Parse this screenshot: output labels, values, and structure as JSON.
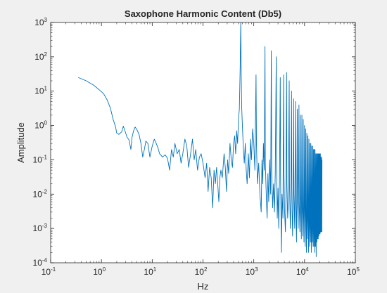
{
  "chart_data": {
    "type": "line",
    "title": "Saxophone Harmonic Content (Db5)",
    "xlabel": "Hz",
    "ylabel": "Amplitude",
    "xscale": "log",
    "yscale": "log",
    "xlim": [
      0.1,
      100000
    ],
    "ylim": [
      0.0001,
      1000
    ],
    "xticks": [
      {
        "value": 0.1,
        "base": "10",
        "exp": "-1"
      },
      {
        "value": 1,
        "base": "10",
        "exp": "0"
      },
      {
        "value": 10,
        "base": "10",
        "exp": "1"
      },
      {
        "value": 100,
        "base": "10",
        "exp": "2"
      },
      {
        "value": 1000,
        "base": "10",
        "exp": "3"
      },
      {
        "value": 10000,
        "base": "10",
        "exp": "4"
      },
      {
        "value": 100000,
        "base": "10",
        "exp": "5"
      }
    ],
    "yticks": [
      {
        "value": 0.0001,
        "base": "10",
        "exp": "-4"
      },
      {
        "value": 0.001,
        "base": "10",
        "exp": "-3"
      },
      {
        "value": 0.01,
        "base": "10",
        "exp": "-2"
      },
      {
        "value": 0.1,
        "base": "10",
        "exp": "-1"
      },
      {
        "value": 1,
        "base": "10",
        "exp": "0"
      },
      {
        "value": 10,
        "base": "10",
        "exp": "1"
      },
      {
        "value": 100,
        "base": "10",
        "exp": "2"
      },
      {
        "value": 1000,
        "base": "10",
        "exp": "3"
      }
    ],
    "grid": false,
    "series": [
      {
        "color": "#0072bd",
        "points": [
          [
            0.35,
            25
          ],
          [
            0.5,
            20
          ],
          [
            0.7,
            15
          ],
          [
            0.9,
            11
          ],
          [
            1.1,
            8.5
          ],
          [
            1.3,
            5.5
          ],
          [
            1.5,
            3.2
          ],
          [
            1.7,
            1.5
          ],
          [
            1.9,
            0.9
          ],
          [
            2.0,
            0.6
          ],
          [
            2.2,
            0.55
          ],
          [
            2.5,
            0.65
          ],
          [
            2.7,
            0.95
          ],
          [
            2.9,
            0.7
          ],
          [
            3.2,
            0.45
          ],
          [
            3.5,
            0.38
          ],
          [
            3.8,
            0.2
          ],
          [
            4.0,
            0.45
          ],
          [
            4.3,
            0.7
          ],
          [
            4.6,
            0.9
          ],
          [
            5.0,
            0.75
          ],
          [
            5.5,
            0.55
          ],
          [
            6.0,
            0.3
          ],
          [
            6.5,
            0.12
          ],
          [
            7.0,
            0.2
          ],
          [
            7.5,
            0.35
          ],
          [
            8.2,
            0.3
          ],
          [
            9.0,
            0.12
          ],
          [
            10,
            0.25
          ],
          [
            11,
            0.4
          ],
          [
            12,
            0.3
          ],
          [
            13,
            0.22
          ],
          [
            14,
            0.15
          ],
          [
            16,
            0.12
          ],
          [
            18,
            0.14
          ],
          [
            20,
            0.11
          ],
          [
            22,
            0.05
          ],
          [
            24,
            0.2
          ],
          [
            26,
            0.12
          ],
          [
            28,
            0.3
          ],
          [
            31,
            0.15
          ],
          [
            34,
            0.2
          ],
          [
            37,
            0.08
          ],
          [
            40,
            0.15
          ],
          [
            44,
            0.4
          ],
          [
            48,
            0.25
          ],
          [
            52,
            0.06
          ],
          [
            57,
            0.15
          ],
          [
            62,
            0.4
          ],
          [
            67,
            0.1
          ],
          [
            72,
            0.2
          ],
          [
            78,
            0.05
          ],
          [
            85,
            0.12
          ],
          [
            92,
            0.15
          ],
          [
            100,
            0.08
          ],
          [
            110,
            0.03
          ],
          [
            118,
            0.08
          ],
          [
            126,
            0.012
          ],
          [
            135,
            0.06
          ],
          [
            145,
            0.03
          ],
          [
            155,
            0.004
          ],
          [
            165,
            0.05
          ],
          [
            175,
            0.02
          ],
          [
            185,
            0.06
          ],
          [
            195,
            0.02
          ],
          [
            205,
            0.006
          ],
          [
            215,
            0.03
          ],
          [
            225,
            0.05
          ],
          [
            240,
            0.03
          ],
          [
            260,
            0.15
          ],
          [
            275,
            0.06
          ],
          [
            290,
            0.012
          ],
          [
            305,
            0.1
          ],
          [
            320,
            0.04
          ],
          [
            340,
            0.3
          ],
          [
            360,
            0.1
          ],
          [
            380,
            0.06
          ],
          [
            400,
            0.3
          ],
          [
            420,
            0.5
          ],
          [
            440,
            0.15
          ],
          [
            460,
            0.7
          ],
          [
            480,
            0.3
          ],
          [
            500,
            1.5
          ],
          [
            520,
            3
          ],
          [
            540,
            50
          ],
          [
            554,
            1000
          ],
          [
            566,
            30
          ],
          [
            580,
            3
          ],
          [
            600,
            0.8
          ],
          [
            625,
            0.2
          ],
          [
            650,
            0.08
          ],
          [
            680,
            0.3
          ],
          [
            710,
            0.05
          ],
          [
            740,
            0.02
          ],
          [
            780,
            0.15
          ],
          [
            820,
            0.03
          ],
          [
            860,
            0.4
          ],
          [
            900,
            0.1
          ],
          [
            950,
            0.8
          ],
          [
            1000,
            0.3
          ],
          [
            1050,
            0.05
          ],
          [
            1108,
            30
          ],
          [
            1130,
            0.3
          ],
          [
            1180,
            0.02
          ],
          [
            1250,
            0.08
          ],
          [
            1320,
            0.01
          ],
          [
            1400,
            0.003
          ],
          [
            1450,
            0.1
          ],
          [
            1500,
            0.02
          ],
          [
            1550,
            0.3
          ],
          [
            1610,
            0.05
          ],
          [
            1662,
            200
          ],
          [
            1690,
            0.08
          ],
          [
            1760,
            0.01
          ],
          [
            1830,
            0.002
          ],
          [
            1900,
            0.04
          ],
          [
            1970,
            0.006
          ],
          [
            2060,
            0.1
          ],
          [
            2150,
            0.01
          ],
          [
            2216,
            150
          ],
          [
            2250,
            0.05
          ],
          [
            2350,
            0.004
          ],
          [
            2450,
            0.02
          ],
          [
            2550,
            0.003
          ],
          [
            2650,
            0.04
          ],
          [
            2770,
            100
          ],
          [
            2810,
            0.05
          ],
          [
            2900,
            0.002
          ],
          [
            3000,
            0.015
          ],
          [
            3100,
            0.001
          ],
          [
            3200,
            0.02
          ],
          [
            3324,
            25
          ],
          [
            3370,
            0.03
          ],
          [
            3500,
            0.0002
          ],
          [
            3600,
            0.01
          ],
          [
            3750,
            0.002
          ],
          [
            3878,
            30
          ],
          [
            3930,
            0.04
          ],
          [
            4050,
            0.003
          ],
          [
            4200,
            0.0008
          ],
          [
            4300,
            0.01
          ],
          [
            4432,
            35
          ],
          [
            4490,
            0.02
          ],
          [
            4650,
            0.002
          ],
          [
            4800,
            0.006
          ],
          [
            4986,
            20
          ],
          [
            5050,
            0.02
          ],
          [
            5250,
            0.001
          ],
          [
            5400,
            0.008
          ],
          [
            5540,
            10
          ],
          [
            5610,
            0.015
          ],
          [
            5800,
            0.0006
          ],
          [
            5950,
            0.005
          ],
          [
            6094,
            6
          ],
          [
            6170,
            0.01
          ],
          [
            6400,
            0.001
          ],
          [
            6648,
            5
          ],
          [
            6730,
            0.008
          ],
          [
            6950,
            0.0004
          ],
          [
            7202,
            3
          ],
          [
            7290,
            0.006
          ],
          [
            7500,
            0.001
          ],
          [
            7756,
            4
          ],
          [
            7850,
            0.005
          ],
          [
            8100,
            0.0008
          ],
          [
            8310,
            2
          ],
          [
            8410,
            0.004
          ],
          [
            8650,
            0.0005
          ],
          [
            8864,
            2
          ],
          [
            8970,
            0.004
          ],
          [
            9200,
            0.0006
          ],
          [
            9418,
            1.5
          ],
          [
            9530,
            0.003
          ],
          [
            9750,
            0.0004
          ],
          [
            9972,
            1
          ],
          [
            10100,
            0.004
          ],
          [
            10300,
            0.0003
          ],
          [
            10526,
            0.8
          ],
          [
            10650,
            0.003
          ],
          [
            10900,
            0.0002
          ],
          [
            11080,
            0.6
          ],
          [
            11200,
            0.003
          ],
          [
            11400,
            0.0005
          ],
          [
            11634,
            0.5
          ],
          [
            11780,
            0.002
          ],
          [
            12000,
            0.0002
          ],
          [
            12188,
            0.4
          ],
          [
            12330,
            0.002
          ],
          [
            12550,
            0.0003
          ],
          [
            12742,
            0.3
          ],
          [
            12900,
            0.002
          ],
          [
            13100,
            0.0004
          ],
          [
            13296,
            0.3
          ],
          [
            13450,
            0.002
          ],
          [
            13650,
            0.0002
          ],
          [
            13850,
            0.25
          ],
          [
            14000,
            0.002
          ],
          [
            14200,
            0.0004
          ],
          [
            14404,
            0.25
          ],
          [
            14560,
            0.002
          ],
          [
            14750,
            0.0003
          ],
          [
            14958,
            0.2
          ],
          [
            15120,
            0.002
          ],
          [
            15300,
            0.0003
          ],
          [
            15512,
            0.2
          ],
          [
            15680,
            0.002
          ],
          [
            15850,
            0.0002
          ],
          [
            16066,
            0.2
          ],
          [
            16240,
            0.002
          ],
          [
            16400,
            0.0003
          ],
          [
            16620,
            0.15
          ],
          [
            16800,
            0.002
          ],
          [
            16950,
            0.00015
          ],
          [
            17174,
            0.15
          ],
          [
            17350,
            0.002
          ],
          [
            17500,
            0.0004
          ],
          [
            17728,
            0.15
          ],
          [
            17900,
            0.002
          ],
          [
            18050,
            0.0005
          ],
          [
            18282,
            0.15
          ],
          [
            18460,
            0.002
          ],
          [
            18600,
            0.0005
          ],
          [
            18836,
            0.15
          ],
          [
            19000,
            0.003
          ],
          [
            19150,
            0.0006
          ],
          [
            19390,
            0.15
          ],
          [
            19560,
            0.003
          ],
          [
            19700,
            0.0007
          ],
          [
            19944,
            0.15
          ],
          [
            20100,
            0.003
          ],
          [
            20250,
            0.0007
          ],
          [
            20498,
            0.15
          ],
          [
            20650,
            0.004
          ],
          [
            20800,
            0.0008
          ],
          [
            21052,
            0.12
          ],
          [
            21200,
            0.004
          ],
          [
            21350,
            0.0008
          ],
          [
            21606,
            0.12
          ],
          [
            21750,
            0.005
          ],
          [
            21900,
            0.0008
          ],
          [
            22050,
            0.1
          ]
        ]
      }
    ]
  }
}
